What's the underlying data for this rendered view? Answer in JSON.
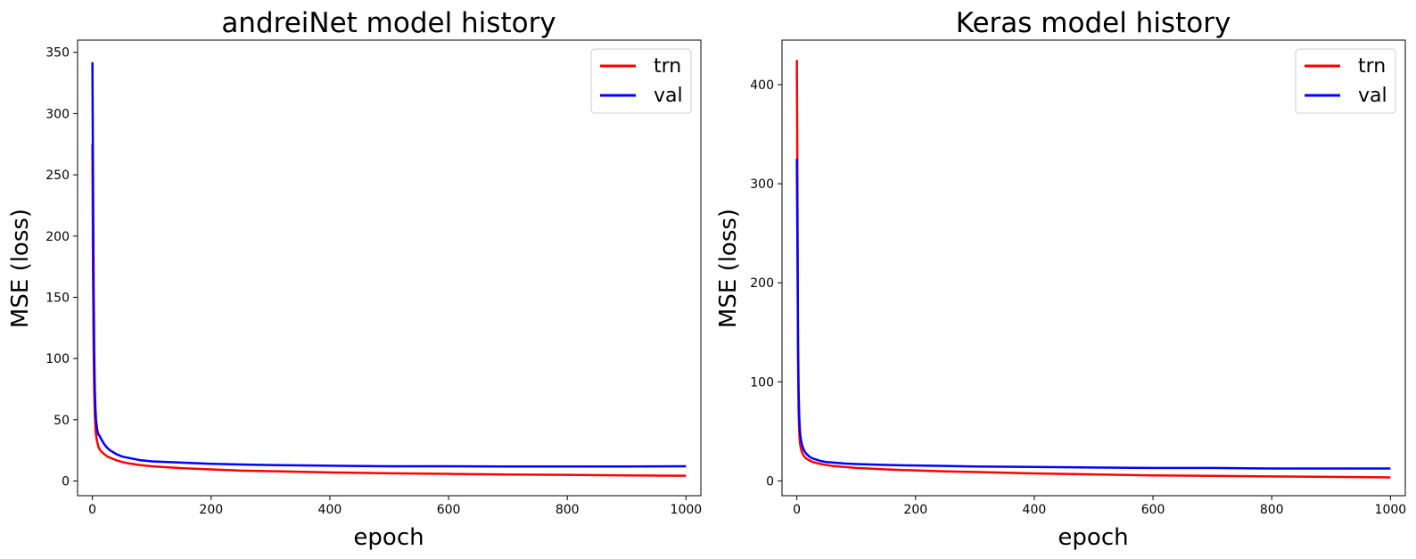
{
  "chart_data": [
    {
      "type": "line",
      "title": "andreiNet model history",
      "xlabel": "epoch",
      "ylabel": "MSE (loss)",
      "xlim": [
        -25,
        1025
      ],
      "ylim": [
        -12,
        360
      ],
      "xticks": [
        0,
        200,
        400,
        600,
        800,
        1000
      ],
      "yticks": [
        0,
        50,
        100,
        150,
        200,
        250,
        300,
        350
      ],
      "grid": false,
      "legend": "top-right",
      "series": [
        {
          "name": "trn",
          "color": "#ff0000",
          "x": [
            0,
            1,
            2,
            3,
            4,
            5,
            6,
            8,
            10,
            12,
            15,
            20,
            25,
            30,
            40,
            50,
            60,
            80,
            100,
            150,
            200,
            250,
            300,
            400,
            500,
            600,
            700,
            800,
            900,
            1000
          ],
          "y": [
            275,
            170,
            110,
            75,
            55,
            44,
            38,
            32,
            28,
            26,
            24,
            22,
            20,
            19,
            17,
            15.5,
            14.5,
            13,
            12,
            10.5,
            9.5,
            8.5,
            8,
            7,
            6.3,
            5.8,
            5.3,
            5,
            4.6,
            4.3
          ]
        },
        {
          "name": "val",
          "color": "#0000ff",
          "x": [
            0,
            1,
            2,
            3,
            4,
            5,
            6,
            8,
            10,
            12,
            15,
            20,
            25,
            30,
            40,
            50,
            60,
            80,
            100,
            150,
            200,
            250,
            300,
            400,
            500,
            600,
            700,
            800,
            900,
            1000
          ],
          "y": [
            342,
            250,
            160,
            105,
            75,
            60,
            50,
            42,
            38,
            37,
            34,
            30,
            27,
            25,
            22,
            20,
            19,
            17,
            16,
            15,
            14,
            13.5,
            13,
            12.5,
            12,
            12,
            11.8,
            11.8,
            11.8,
            12
          ]
        }
      ]
    },
    {
      "type": "line",
      "title": "Keras model history",
      "xlabel": "epoch",
      "ylabel": "MSE (loss)",
      "xlim": [
        -25,
        1025
      ],
      "ylim": [
        -15,
        445
      ],
      "xticks": [
        0,
        200,
        400,
        600,
        800,
        1000
      ],
      "yticks": [
        0,
        100,
        200,
        300,
        400
      ],
      "grid": false,
      "legend": "top-right",
      "series": [
        {
          "name": "trn",
          "color": "#ff0000",
          "x": [
            0,
            1,
            2,
            3,
            4,
            5,
            6,
            8,
            10,
            12,
            15,
            20,
            25,
            30,
            40,
            50,
            60,
            80,
            100,
            150,
            200,
            250,
            300,
            400,
            500,
            600,
            700,
            800,
            900,
            1000
          ],
          "y": [
            425,
            300,
            120,
            70,
            50,
            40,
            35,
            30,
            27,
            25,
            23,
            21,
            19.5,
            18.5,
            17,
            16,
            15,
            14,
            13,
            11.5,
            10.5,
            9.5,
            9,
            7.5,
            6.5,
            5.5,
            5,
            4.5,
            4,
            3.5
          ]
        },
        {
          "name": "val",
          "color": "#0000ff",
          "x": [
            0,
            1,
            2,
            3,
            4,
            5,
            6,
            8,
            10,
            12,
            15,
            20,
            25,
            30,
            40,
            50,
            60,
            80,
            100,
            150,
            200,
            250,
            300,
            400,
            500,
            600,
            700,
            800,
            900,
            1000
          ],
          "y": [
            325,
            240,
            140,
            90,
            65,
            52,
            45,
            38,
            34,
            31,
            28,
            25,
            23,
            22,
            20,
            19,
            18.5,
            17.5,
            17,
            16,
            15.5,
            15,
            14.5,
            14,
            13.5,
            13,
            13,
            12.5,
            12.5,
            12.5
          ]
        }
      ]
    }
  ]
}
